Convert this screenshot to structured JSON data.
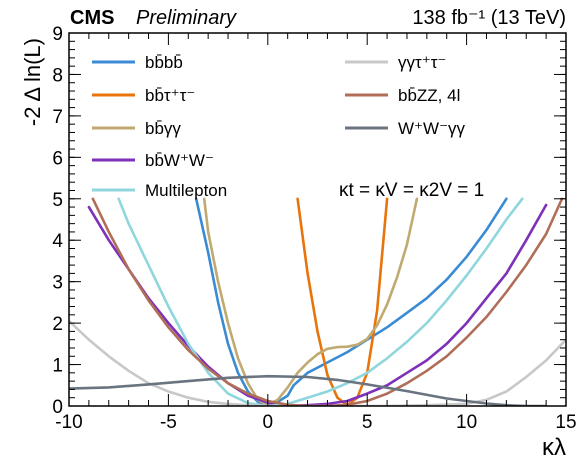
{
  "chart_data": {
    "type": "line",
    "header_left_bold": "CMS",
    "header_left_italic": "Preliminary",
    "header_right": "138 fb⁻¹ (13 TeV)",
    "xlabel": "κλ",
    "ylabel": "-2 Δ ln(L)",
    "xlim": [
      -10,
      15
    ],
    "ylim": [
      0,
      9
    ],
    "x_ticks": [
      -10,
      -5,
      0,
      5,
      10,
      15
    ],
    "y_ticks": [
      0,
      1,
      2,
      3,
      4,
      5,
      6,
      7,
      8,
      9
    ],
    "legend_location": "top",
    "annotation": "κt = κV = κ2V = 1",
    "series": [
      {
        "name": "bb̄bb̄",
        "color": "#3b8bd4",
        "x": [
          -3.6,
          -3,
          -2.5,
          -2,
          -1.5,
          -1,
          -0.5,
          0,
          0.5,
          1,
          1.3,
          2,
          3,
          4,
          5,
          6,
          7,
          8,
          9,
          10,
          11,
          12
        ],
        "y": [
          5.0,
          3.7,
          2.5,
          1.5,
          0.8,
          0.35,
          0.1,
          0.03,
          0.1,
          0.25,
          0.5,
          0.8,
          1.05,
          1.3,
          1.6,
          1.9,
          2.25,
          2.6,
          3.05,
          3.6,
          4.25,
          5.0
        ]
      },
      {
        "name": "bb̄τ⁺τ⁻",
        "color": "#e8740c",
        "x": [
          1.5,
          2,
          2.5,
          3,
          3.5,
          4,
          4.5,
          5,
          5.5,
          6
        ],
        "y": [
          5.0,
          3.2,
          1.8,
          0.75,
          0.2,
          0.02,
          0.2,
          0.8,
          2.3,
          5.0
        ]
      },
      {
        "name": "bb̄γγ",
        "color": "#c0aa72",
        "x": [
          -3.2,
          -3,
          -2.5,
          -2,
          -1.5,
          -1,
          -0.5,
          0,
          0.5,
          1,
          1.5,
          2,
          2.5,
          3,
          3.5,
          4,
          4.5,
          5,
          5.5,
          6,
          6.5,
          7,
          7.5
        ],
        "y": [
          5.0,
          4.2,
          3.0,
          2.0,
          1.15,
          0.55,
          0.15,
          0.02,
          0.15,
          0.45,
          0.8,
          1.05,
          1.25,
          1.38,
          1.42,
          1.43,
          1.48,
          1.62,
          1.95,
          2.45,
          3.1,
          3.9,
          5.0
        ]
      },
      {
        "name": "bb̄W⁺W⁻",
        "color": "#7e30b8",
        "x": [
          -9,
          -8,
          -7,
          -6,
          -5,
          -4,
          -3,
          -2,
          -1,
          0,
          1,
          2,
          3,
          4,
          5,
          6,
          7,
          8,
          9,
          10,
          11,
          12,
          13,
          14
        ],
        "y": [
          4.8,
          4.0,
          3.3,
          2.6,
          2.0,
          1.45,
          0.95,
          0.55,
          0.25,
          0.08,
          0.0,
          0.02,
          0.05,
          0.12,
          0.3,
          0.5,
          0.8,
          1.1,
          1.5,
          2.0,
          2.6,
          3.2,
          4.0,
          4.85
        ]
      },
      {
        "name": "Multilepton",
        "color": "#8fd6dd",
        "x": [
          -7.5,
          -7,
          -6,
          -5,
          -4,
          -3,
          -2,
          -1,
          0,
          1,
          2,
          3,
          4,
          5,
          6,
          7,
          8,
          9,
          10,
          11,
          12,
          12.8
        ],
        "y": [
          5.0,
          4.4,
          3.4,
          2.4,
          1.5,
          0.8,
          0.3,
          0.07,
          0.0,
          0.05,
          0.2,
          0.35,
          0.55,
          0.8,
          1.15,
          1.55,
          2.0,
          2.55,
          3.15,
          3.8,
          4.5,
          5.0
        ]
      },
      {
        "name": "γγτ⁺τ⁻",
        "color": "#c8c8c8",
        "x": [
          -10,
          -9,
          -8,
          -7,
          -6,
          -5,
          -4,
          -3,
          -2,
          -1,
          0,
          2,
          4,
          6,
          8,
          10,
          11,
          12,
          13,
          14,
          15
        ],
        "y": [
          2.05,
          1.6,
          1.2,
          0.85,
          0.55,
          0.35,
          0.2,
          0.1,
          0.05,
          0.02,
          0.0,
          0.0,
          0.0,
          0.0,
          0.02,
          0.05,
          0.15,
          0.35,
          0.7,
          1.1,
          1.6
        ]
      },
      {
        "name": "bb̄ZZ, 4l",
        "color": "#b06e58",
        "x": [
          -8.8,
          -8,
          -7,
          -6,
          -5,
          -4,
          -3,
          -2,
          -1,
          0,
          1,
          2,
          3,
          4,
          5,
          6,
          7,
          8,
          9,
          10,
          11,
          12,
          13,
          14,
          14.8
        ],
        "y": [
          5.0,
          4.2,
          3.3,
          2.55,
          1.9,
          1.35,
          0.9,
          0.55,
          0.3,
          0.12,
          0.03,
          0.0,
          0.0,
          0.03,
          0.12,
          0.3,
          0.55,
          0.85,
          1.2,
          1.65,
          2.15,
          2.75,
          3.4,
          4.15,
          5.0
        ]
      },
      {
        "name": "W⁺W⁻γγ",
        "color": "#6a7480",
        "x": [
          -10,
          -8,
          -6,
          -4,
          -2,
          0,
          2,
          3.5,
          5,
          7,
          9,
          11,
          12,
          13,
          14
        ],
        "y": [
          0.42,
          0.45,
          0.52,
          0.6,
          0.68,
          0.72,
          0.7,
          0.63,
          0.52,
          0.36,
          0.18,
          0.06,
          0.02,
          0.0,
          0.0
        ]
      }
    ]
  }
}
